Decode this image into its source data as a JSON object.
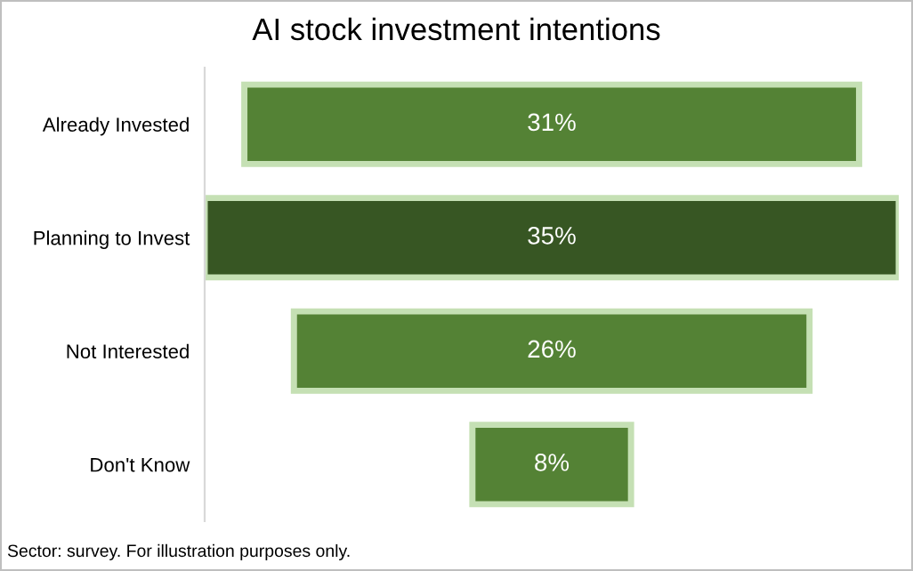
{
  "chart_data": {
    "type": "other",
    "title": "AI stock investment intentions",
    "categories": [
      "Already Invested",
      "Planning to Invest",
      "Not Interested",
      "Don't Know"
    ],
    "values": [
      31,
      35,
      26,
      8
    ],
    "colors": [
      "#548235",
      "#375623",
      "#548235",
      "#548235"
    ],
    "value_labels": [
      "31%",
      "35%",
      "26%",
      "8%"
    ],
    "annotations": [
      "Sector: survey. For illustration purposes only."
    ]
  }
}
